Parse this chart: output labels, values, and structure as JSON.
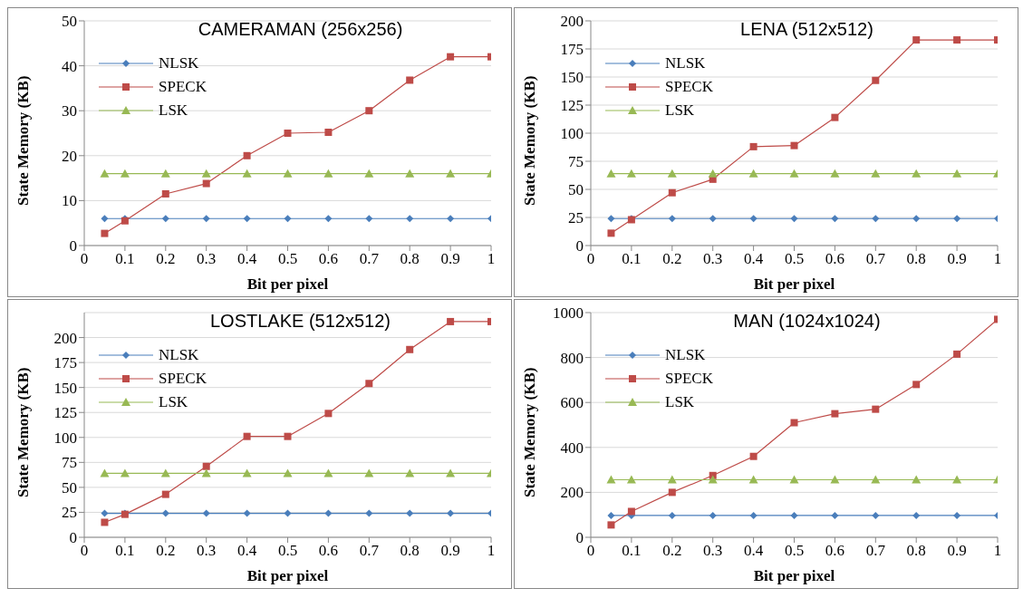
{
  "chart_data": [
    {
      "type": "line",
      "title": "CAMERAMAN (256x256)",
      "xlabel": "Bit per pixel",
      "ylabel": "State Memory (KB)",
      "x": [
        0.05,
        0.1,
        0.2,
        0.3,
        0.4,
        0.5,
        0.6,
        0.7,
        0.8,
        0.9,
        1
      ],
      "xlim": [
        0,
        1
      ],
      "xticks": [
        0,
        0.1,
        0.2,
        0.3,
        0.4,
        0.5,
        0.6,
        0.7,
        0.8,
        0.9,
        1
      ],
      "ylim": [
        0,
        50
      ],
      "yticks": [
        0,
        10,
        20,
        30,
        40,
        50
      ],
      "grid": "y",
      "legend": "top left",
      "series": [
        {
          "name": "NLSK",
          "color": "#4a7ebb",
          "marker": "diamond",
          "values": [
            6,
            6,
            6,
            6,
            6,
            6,
            6,
            6,
            6,
            6,
            6
          ]
        },
        {
          "name": "SPECK",
          "color": "#be4b48",
          "marker": "square",
          "values": [
            2.7,
            5.5,
            11.5,
            13.8,
            20,
            25,
            25.2,
            30,
            36.8,
            42,
            42
          ]
        },
        {
          "name": "LSK",
          "color": "#98b954",
          "marker": "triangle",
          "values": [
            16,
            16,
            16,
            16,
            16,
            16,
            16,
            16,
            16,
            16,
            16
          ]
        }
      ]
    },
    {
      "type": "line",
      "title": "LENA (512x512)",
      "xlabel": "Bit per pixel",
      "ylabel": "State Memory (KB)",
      "x": [
        0.05,
        0.1,
        0.2,
        0.3,
        0.4,
        0.5,
        0.6,
        0.7,
        0.8,
        0.9,
        1
      ],
      "xlim": [
        0,
        1
      ],
      "xticks": [
        0,
        0.1,
        0.2,
        0.3,
        0.4,
        0.5,
        0.6,
        0.7,
        0.8,
        0.9,
        1
      ],
      "ylim": [
        0,
        200
      ],
      "yticks": [
        0,
        25,
        50,
        75,
        100,
        125,
        150,
        175,
        200
      ],
      "grid": "y",
      "legend": "top left",
      "series": [
        {
          "name": "NLSK",
          "color": "#4a7ebb",
          "marker": "diamond",
          "values": [
            24,
            24,
            24,
            24,
            24,
            24,
            24,
            24,
            24,
            24,
            24
          ]
        },
        {
          "name": "SPECK",
          "color": "#be4b48",
          "marker": "square",
          "values": [
            11,
            23,
            47,
            59,
            88,
            89,
            114,
            147,
            183,
            183,
            183
          ]
        },
        {
          "name": "LSK",
          "color": "#98b954",
          "marker": "triangle",
          "values": [
            64,
            64,
            64,
            64,
            64,
            64,
            64,
            64,
            64,
            64,
            64
          ]
        }
      ]
    },
    {
      "type": "line",
      "title": "LOSTLAKE (512x512)",
      "xlabel": "Bit per pixel",
      "ylabel": "State Memory (KB)",
      "x": [
        0.05,
        0.1,
        0.2,
        0.3,
        0.4,
        0.5,
        0.6,
        0.7,
        0.8,
        0.9,
        1
      ],
      "xlim": [
        0,
        1
      ],
      "xticks": [
        0,
        0.1,
        0.2,
        0.3,
        0.4,
        0.5,
        0.6,
        0.7,
        0.8,
        0.9,
        1
      ],
      "ylim": [
        0,
        225
      ],
      "yticks": [
        0,
        25,
        50,
        75,
        100,
        125,
        150,
        175,
        200
      ],
      "grid": "y",
      "legend": "top left",
      "series": [
        {
          "name": "NLSK",
          "color": "#4a7ebb",
          "marker": "diamond",
          "values": [
            24,
            24,
            24,
            24,
            24,
            24,
            24,
            24,
            24,
            24,
            24
          ]
        },
        {
          "name": "SPECK",
          "color": "#be4b48",
          "marker": "square",
          "values": [
            15,
            23,
            43,
            71,
            101,
            101,
            124,
            154,
            188,
            216,
            216
          ]
        },
        {
          "name": "LSK",
          "color": "#98b954",
          "marker": "triangle",
          "values": [
            64,
            64,
            64,
            64,
            64,
            64,
            64,
            64,
            64,
            64,
            64
          ]
        }
      ]
    },
    {
      "type": "line",
      "title": "MAN (1024x1024)",
      "xlabel": "Bit per pixel",
      "ylabel": "State Memory (KB)",
      "x": [
        0.05,
        0.1,
        0.2,
        0.3,
        0.4,
        0.5,
        0.6,
        0.7,
        0.8,
        0.9,
        1
      ],
      "xlim": [
        0,
        1
      ],
      "xticks": [
        0,
        0.1,
        0.2,
        0.3,
        0.4,
        0.5,
        0.6,
        0.7,
        0.8,
        0.9,
        1
      ],
      "ylim": [
        0,
        1000
      ],
      "yticks": [
        0,
        200,
        400,
        600,
        800,
        1000
      ],
      "grid": "y",
      "legend": "top left",
      "series": [
        {
          "name": "NLSK",
          "color": "#4a7ebb",
          "marker": "diamond",
          "values": [
            97,
            97,
            97,
            97,
            97,
            97,
            97,
            97,
            97,
            97,
            97
          ]
        },
        {
          "name": "SPECK",
          "color": "#be4b48",
          "marker": "square",
          "values": [
            55,
            115,
            200,
            275,
            360,
            510,
            550,
            570,
            680,
            815,
            970
          ]
        },
        {
          "name": "LSK",
          "color": "#98b954",
          "marker": "triangle",
          "values": [
            256,
            256,
            256,
            256,
            256,
            256,
            256,
            256,
            256,
            256,
            256
          ]
        }
      ]
    }
  ]
}
